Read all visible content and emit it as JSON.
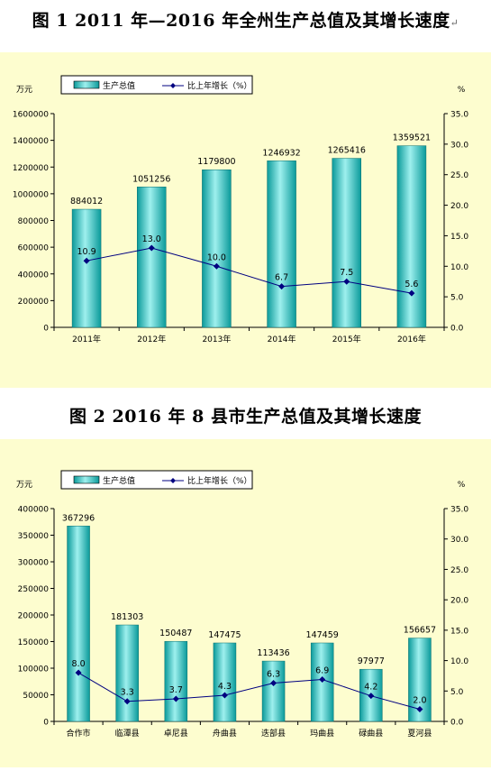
{
  "figures": [
    {
      "caption": "图 1 2011 年—2016 年全州生产总值及其增长速度",
      "caption_suffix": "↵",
      "chart_data": {
        "type": "bar",
        "categories": [
          "2011年",
          "2012年",
          "2013年",
          "2014年",
          "2015年",
          "2016年"
        ],
        "series": [
          {
            "name": "生产总值",
            "type": "bar",
            "axis": "left",
            "values": [
              884012,
              1051256,
              1179800,
              1246932,
              1265416,
              1359521
            ]
          },
          {
            "name": "比上年增长（%）",
            "type": "line",
            "axis": "right",
            "values": [
              10.9,
              13.0,
              10.0,
              6.7,
              7.5,
              5.6
            ]
          }
        ],
        "bar_labels": [
          "884012",
          "1051256",
          "1179800",
          "1246932",
          "1265416",
          "1359521"
        ],
        "line_labels": [
          "10.9",
          "13.0",
          "10.0",
          "6.7",
          "7.5",
          "5.6"
        ],
        "y_left": {
          "unit": "万元",
          "min": 0,
          "max": 1600000,
          "ticks": [
            "0",
            "200000",
            "400000",
            "600000",
            "800000",
            "1000000",
            "1200000",
            "1400000",
            "1600000"
          ]
        },
        "y_right": {
          "unit": "%",
          "min": 0,
          "max": 35,
          "ticks": [
            "0.0",
            "5.0",
            "10.0",
            "15.0",
            "20.0",
            "25.0",
            "30.0",
            "35.0"
          ]
        },
        "legend": "top-left",
        "grid": false
      }
    },
    {
      "caption": "图 2 2016 年 8 县市生产总值及其增长速度",
      "caption_suffix": "",
      "chart_data": {
        "type": "bar",
        "categories": [
          "合作市",
          "临潭县",
          "卓尼县",
          "舟曲县",
          "迭部县",
          "玛曲县",
          "碌曲县",
          "夏河县"
        ],
        "series": [
          {
            "name": "生产总值",
            "type": "bar",
            "axis": "left",
            "values": [
              367296,
              181303,
              150487,
              147475,
              113436,
              147459,
              97977,
              156657
            ]
          },
          {
            "name": "比上年增长（%）",
            "type": "line",
            "axis": "right",
            "values": [
              8.0,
              3.3,
              3.7,
              4.3,
              6.3,
              6.9,
              4.2,
              2.0
            ]
          }
        ],
        "bar_labels": [
          "367296",
          "181303",
          "150487",
          "147475",
          "113436",
          "147459",
          "97977",
          "156657"
        ],
        "line_labels": [
          "8.0",
          "3.3",
          "3.7",
          "4.3",
          "6.3",
          "6.9",
          "4.2",
          "2.0"
        ],
        "y_left": {
          "unit": "万元",
          "min": 0,
          "max": 400000,
          "ticks": [
            "0",
            "50000",
            "100000",
            "150000",
            "200000",
            "250000",
            "300000",
            "350000",
            "400000"
          ]
        },
        "y_right": {
          "unit": "%",
          "min": 0,
          "max": 35,
          "ticks": [
            "0.0",
            "5.0",
            "10.0",
            "15.0",
            "20.0",
            "25.0",
            "30.0",
            "35.0"
          ]
        },
        "legend": "top-left",
        "grid": false
      }
    }
  ],
  "colors": {
    "panel_background": "#fdfdcf",
    "bar_fill_dark": "#0a9a9a",
    "bar_fill_light": "#9ef0ee",
    "line": "#000080",
    "marker": "#000080"
  }
}
